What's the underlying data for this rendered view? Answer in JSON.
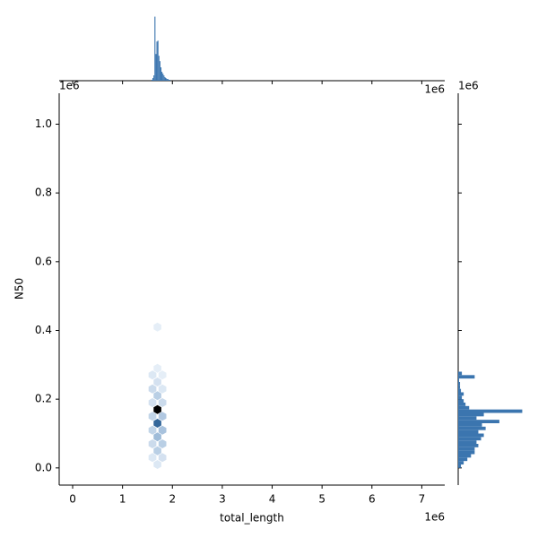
{
  "chart_data": {
    "type": "hexbin",
    "x_label": "total_length",
    "y_label": "N50",
    "x_offset_label": "1e6",
    "y_offset_label": "1e6",
    "top_offset_label": "1e6",
    "right_offset_label": "1e6",
    "xlim": [
      -0.27,
      7.46
    ],
    "ylim": [
      -0.05,
      1.09
    ],
    "xticks": [
      0,
      1,
      2,
      3,
      4,
      5,
      6,
      7
    ],
    "yticks": [
      {
        "value": 0,
        "label": "0.0"
      },
      0.2,
      0.4,
      0.6,
      0.8,
      {
        "value": 1,
        "label": "1.0"
      }
    ],
    "color": "#3b75af",
    "hexes": {
      "x": [
        1.7,
        1.7,
        1.7,
        1.7,
        1.7,
        1.7,
        1.7,
        1.7,
        1.7,
        1.6,
        1.6,
        1.6,
        1.6,
        1.6,
        1.6,
        1.6,
        1.8,
        1.8,
        1.8,
        1.8,
        1.8,
        1.8,
        1.8
      ],
      "y": [
        0.01,
        0.05,
        0.09,
        0.13,
        0.17,
        0.21,
        0.25,
        0.29,
        0.41,
        0.03,
        0.07,
        0.11,
        0.15,
        0.19,
        0.23,
        0.27,
        0.03,
        0.07,
        0.11,
        0.15,
        0.19,
        0.23,
        0.27
      ],
      "counts": [
        2,
        6,
        9,
        22,
        34,
        6,
        3,
        1,
        1,
        2,
        4,
        5,
        5,
        3,
        4,
        2,
        3,
        6,
        8,
        7,
        4,
        2,
        1
      ]
    },
    "x_hist": {
      "bins": [
        1.58,
        1.6,
        1.62,
        1.64,
        1.66,
        1.68,
        1.7,
        1.72,
        1.74,
        1.76,
        1.78,
        1.8,
        1.82,
        1.84,
        1.86,
        1.88,
        1.9,
        1.92,
        1.94,
        1.96
      ],
      "counts": [
        1,
        3,
        6,
        72,
        30,
        44,
        45,
        28,
        22,
        15,
        10,
        8,
        6,
        4,
        3,
        2,
        2,
        1,
        1
      ]
    },
    "y_hist": {
      "bins": [
        0,
        0.01,
        0.02,
        0.03,
        0.04,
        0.05,
        0.06,
        0.07,
        0.08,
        0.09,
        0.1,
        0.11,
        0.12,
        0.13,
        0.14,
        0.15,
        0.16,
        0.17,
        0.18,
        0.19,
        0.2,
        0.21,
        0.22,
        0.23,
        0.24,
        0.25,
        0.26,
        0.27,
        0.28
      ],
      "counts": [
        3,
        6,
        10,
        14,
        18,
        18,
        22,
        20,
        25,
        28,
        22,
        30,
        26,
        45,
        20,
        28,
        70,
        12,
        8,
        6,
        4,
        6,
        3,
        2,
        2,
        1,
        18,
        4
      ]
    }
  }
}
